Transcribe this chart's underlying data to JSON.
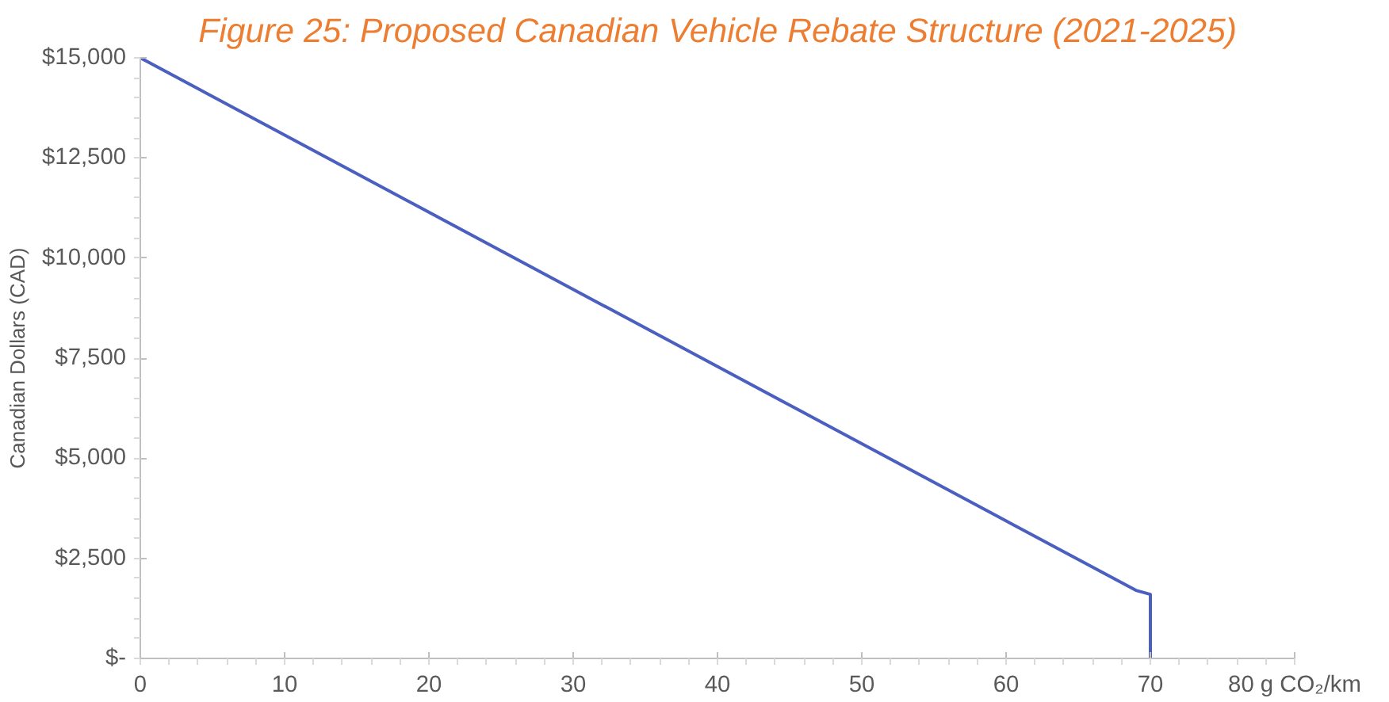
{
  "chart_data": {
    "type": "line",
    "title": "Figure 25: Proposed Canadian Vehicle Rebate Structure (2021-2025)",
    "ylabel": "Canadian Dollars (CAD)",
    "x": [
      0,
      69,
      70,
      70
    ],
    "series": [
      {
        "color": "#4a5fbf",
        "values": [
          15000,
          1700,
          1600,
          0
        ]
      }
    ],
    "xlim": [
      0,
      80
    ],
    "xticks": [
      0,
      10,
      20,
      30,
      40,
      50,
      60,
      70,
      {
        "value": 80,
        "label": "80 g CO₂/km"
      }
    ],
    "ylim": [
      0,
      15000
    ],
    "yticks": [
      {
        "value": 0,
        "label": "$-"
      },
      {
        "value": 2500,
        "label": "$2,500"
      },
      {
        "value": 5000,
        "label": "$5,000"
      },
      {
        "value": 7500,
        "label": "$7,500"
      },
      {
        "value": 10000,
        "label": "$10,000"
      },
      {
        "value": 12500,
        "label": "$12,500"
      },
      {
        "value": 15000,
        "label": "$15,000"
      }
    ],
    "grid": false,
    "marker": "none",
    "line_style": "solid"
  }
}
